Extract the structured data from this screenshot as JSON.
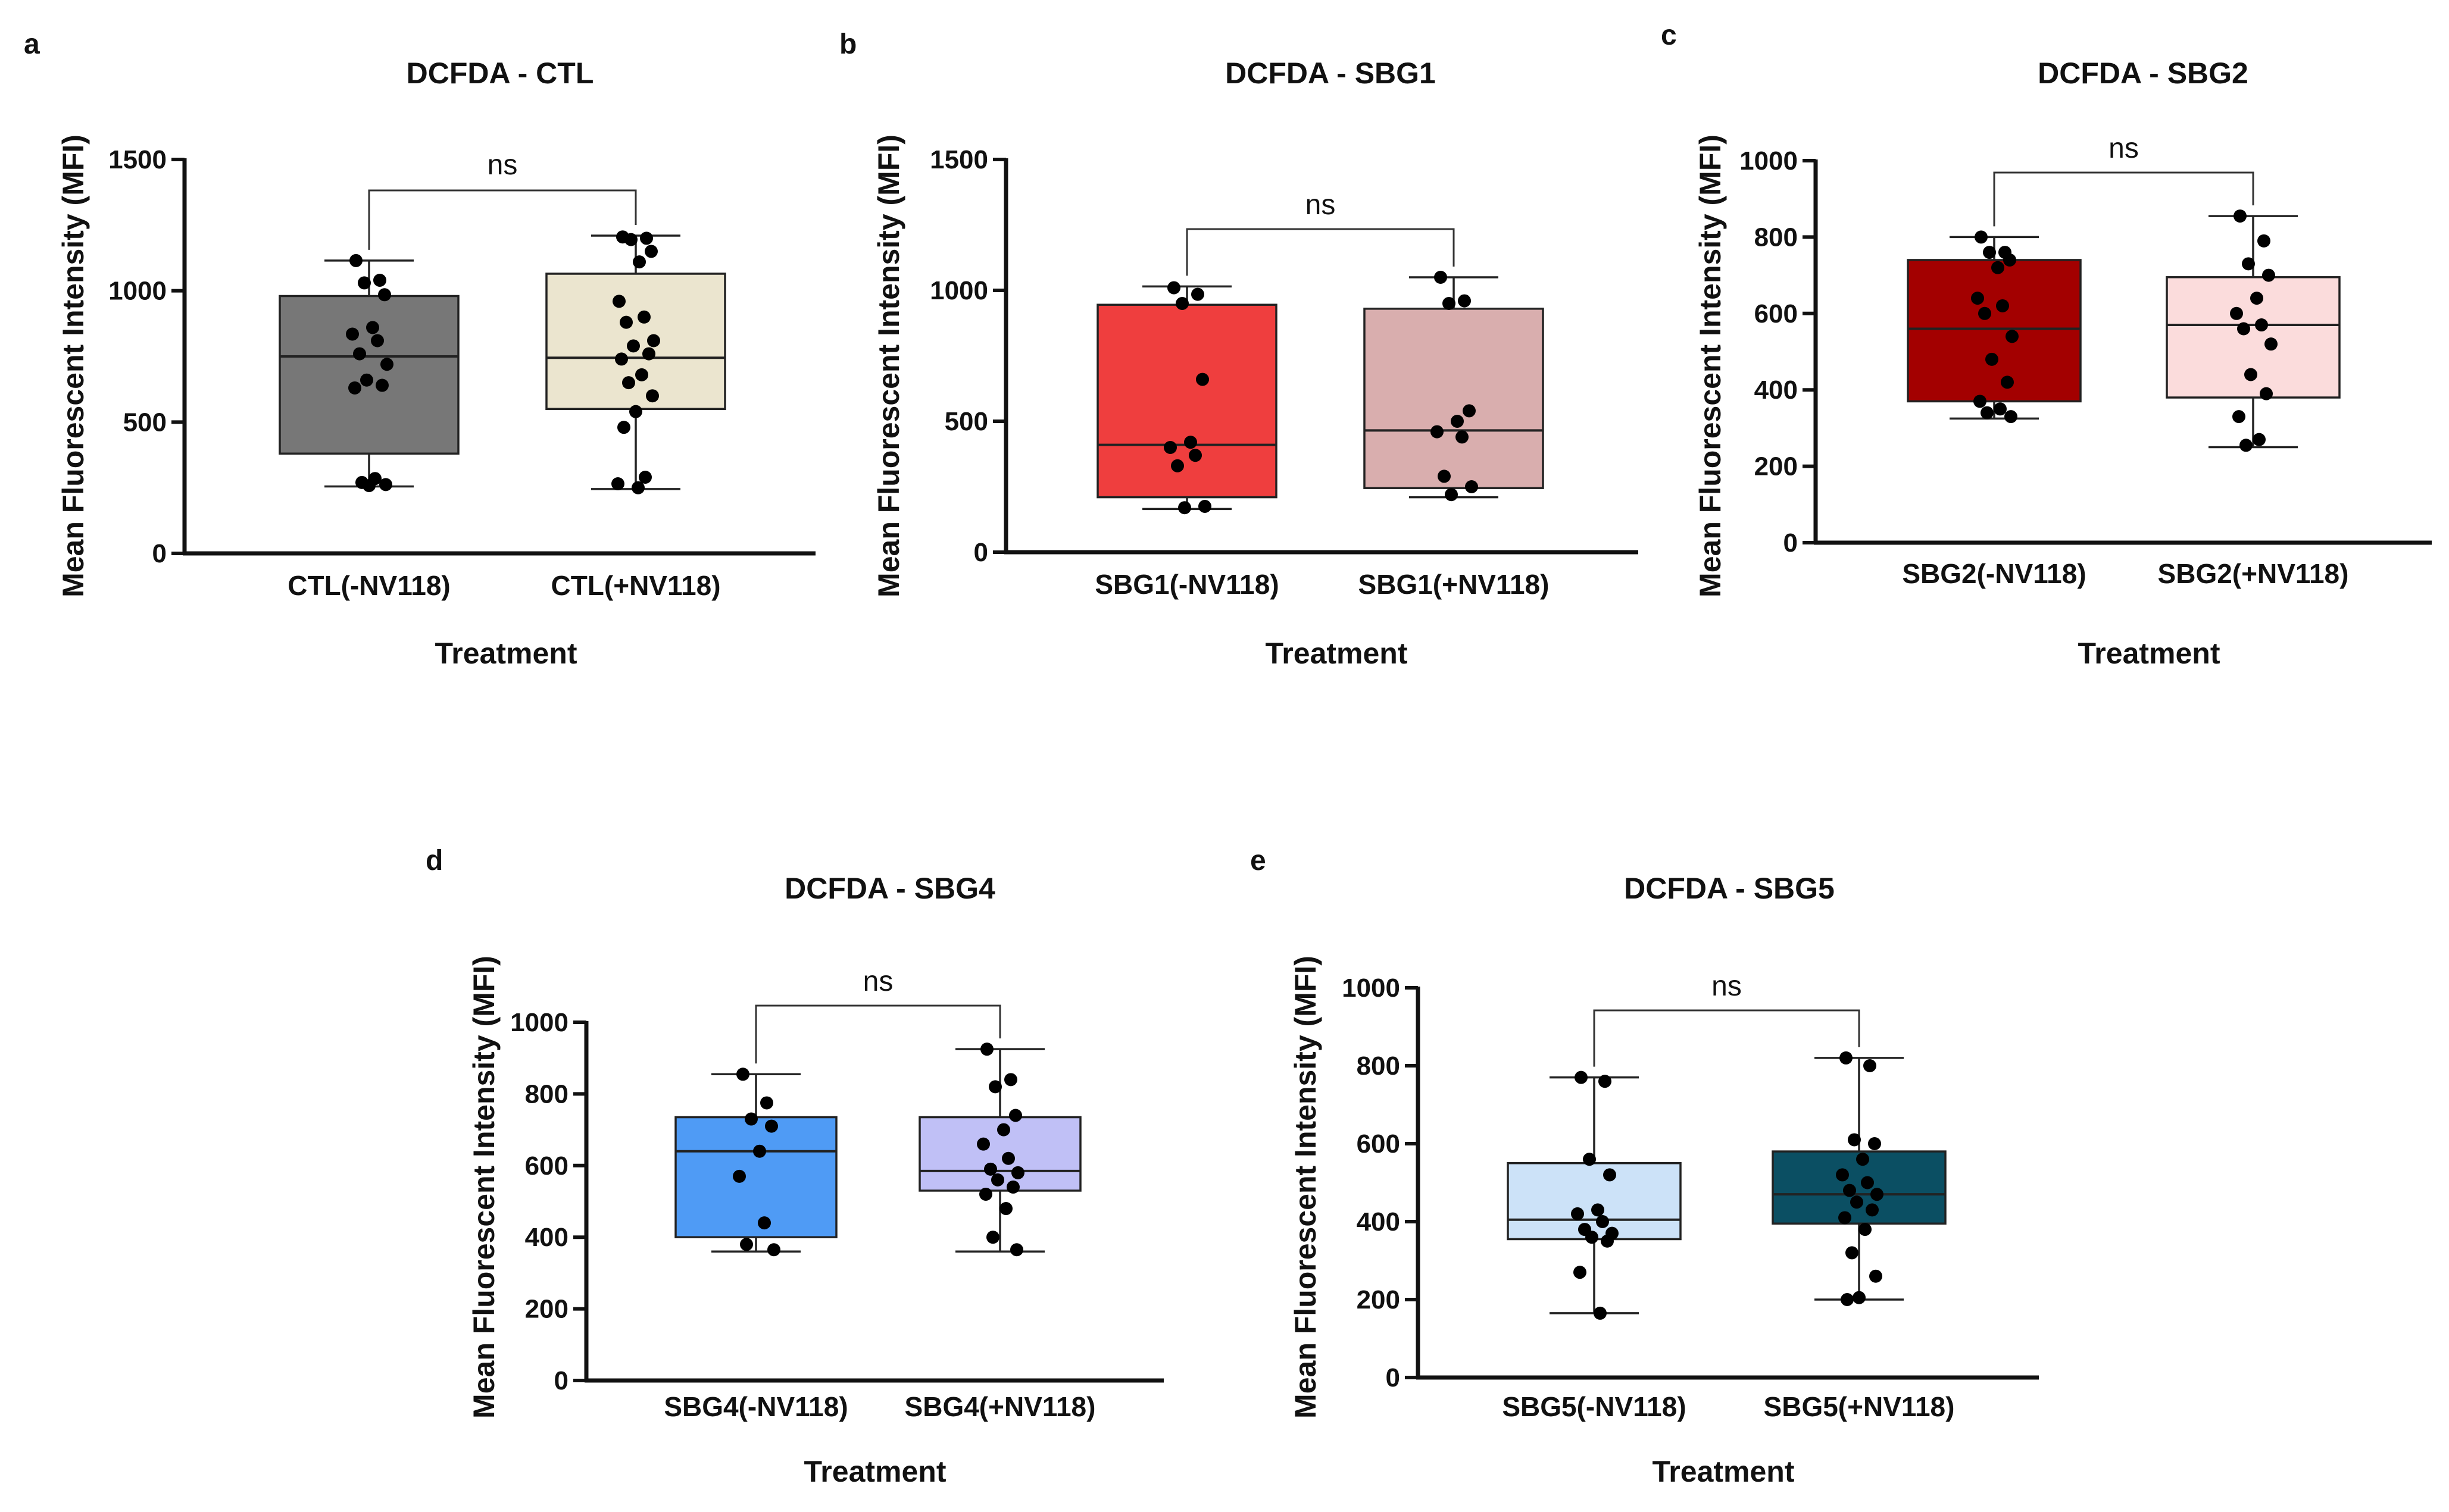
{
  "figure": {
    "y_axis_label": "Mean Fluorescent Intensity (MFI)",
    "x_axis_label": "Treatment"
  },
  "chart_data": [
    {
      "panel": "a",
      "type": "box",
      "title": "DCFDA - CTL",
      "xlabel": "Treatment",
      "ylabel": "Mean Fluorescent Intensity (MFI)",
      "ylim": [
        0,
        1500
      ],
      "yticks": [
        0,
        500,
        1000,
        1500
      ],
      "significance": "ns",
      "groups": [
        {
          "name": "CTL(-NV118)",
          "color": "#777777",
          "min": 255,
          "q1": 380,
          "median": 750,
          "q3": 980,
          "max": 1115,
          "points": [
            1115,
            1040,
            1030,
            985,
            860,
            835,
            810,
            760,
            720,
            660,
            640,
            630,
            285,
            270,
            262,
            258
          ]
        },
        {
          "name": "CTL(+NV118)",
          "color": "#ebe5cf",
          "min": 245,
          "q1": 550,
          "median": 745,
          "q3": 1065,
          "max": 1210,
          "points": [
            1205,
            1200,
            1195,
            1150,
            1110,
            960,
            900,
            880,
            810,
            790,
            760,
            740,
            680,
            650,
            600,
            540,
            480,
            290,
            265,
            250
          ]
        }
      ]
    },
    {
      "panel": "b",
      "type": "box",
      "title": "DCFDA - SBG1",
      "xlabel": "Treatment",
      "ylabel": "Mean Fluorescent Intensity (MFI)",
      "ylim": [
        0,
        1500
      ],
      "yticks": [
        0,
        500,
        1000,
        1500
      ],
      "significance": "ns",
      "groups": [
        {
          "name": "SBG1(-NV118)",
          "color": "#ef3e3e",
          "min": 165,
          "q1": 210,
          "median": 410,
          "q3": 945,
          "max": 1015,
          "points": [
            1010,
            985,
            950,
            660,
            420,
            400,
            370,
            330,
            175,
            170
          ]
        },
        {
          "name": "SBG1(+NV118)",
          "color": "#d9aeae",
          "min": 210,
          "q1": 245,
          "median": 465,
          "q3": 930,
          "max": 1050,
          "points": [
            1050,
            960,
            950,
            540,
            500,
            460,
            440,
            290,
            250,
            220
          ]
        }
      ]
    },
    {
      "panel": "c",
      "type": "box",
      "title": "DCFDA - SBG2",
      "xlabel": "Treatment",
      "ylabel": "Mean Fluorescent Intensity (MFI)",
      "ylim": [
        0,
        1000
      ],
      "yticks": [
        0,
        200,
        400,
        600,
        800,
        1000
      ],
      "significance": "ns",
      "groups": [
        {
          "name": "SBG2(-NV118)",
          "color": "#a30000",
          "min": 325,
          "q1": 370,
          "median": 560,
          "q3": 740,
          "max": 800,
          "points": [
            800,
            760,
            760,
            740,
            720,
            640,
            620,
            600,
            540,
            480,
            420,
            370,
            350,
            340,
            330
          ]
        },
        {
          "name": "SBG2(+NV118)",
          "color": "#fbdcdc",
          "min": 250,
          "q1": 380,
          "median": 570,
          "q3": 695,
          "max": 855,
          "points": [
            855,
            790,
            730,
            700,
            640,
            600,
            570,
            560,
            520,
            440,
            390,
            330,
            270,
            255
          ]
        }
      ]
    },
    {
      "panel": "d",
      "type": "box",
      "title": "DCFDA - SBG4",
      "xlabel": "Treatment",
      "ylabel": "Mean Fluorescent Intensity (MFI)",
      "ylim": [
        0,
        1000
      ],
      "yticks": [
        0,
        200,
        400,
        600,
        800,
        1000
      ],
      "significance": "ns",
      "groups": [
        {
          "name": "SBG4(-NV118)",
          "color": "#4f9bf5",
          "min": 360,
          "q1": 400,
          "median": 640,
          "q3": 735,
          "max": 855,
          "points": [
            855,
            775,
            730,
            710,
            640,
            570,
            440,
            380,
            365
          ]
        },
        {
          "name": "SBG4(+NV118)",
          "color": "#c0c0f6",
          "min": 360,
          "q1": 530,
          "median": 585,
          "q3": 735,
          "max": 925,
          "points": [
            925,
            840,
            820,
            740,
            700,
            660,
            620,
            590,
            580,
            560,
            540,
            520,
            480,
            400,
            365
          ]
        }
      ]
    },
    {
      "panel": "e",
      "type": "box",
      "title": "DCFDA - SBG5",
      "xlabel": "Treatment",
      "ylabel": "Mean Fluorescent Intensity (MFI)",
      "ylim": [
        0,
        1000
      ],
      "yticks": [
        0,
        200,
        400,
        600,
        800,
        1000
      ],
      "significance": "ns",
      "groups": [
        {
          "name": "SBG5(-NV118)",
          "color": "#cce2f8",
          "min": 165,
          "q1": 355,
          "median": 405,
          "q3": 550,
          "max": 770,
          "points": [
            770,
            760,
            560,
            520,
            430,
            420,
            400,
            380,
            370,
            360,
            350,
            270,
            165
          ]
        },
        {
          "name": "SBG5(+NV118)",
          "color": "#0b4f63",
          "min": 200,
          "q1": 395,
          "median": 470,
          "q3": 580,
          "max": 820,
          "points": [
            820,
            800,
            610,
            600,
            560,
            520,
            500,
            480,
            470,
            450,
            430,
            410,
            380,
            320,
            260,
            205,
            200
          ]
        }
      ]
    }
  ]
}
